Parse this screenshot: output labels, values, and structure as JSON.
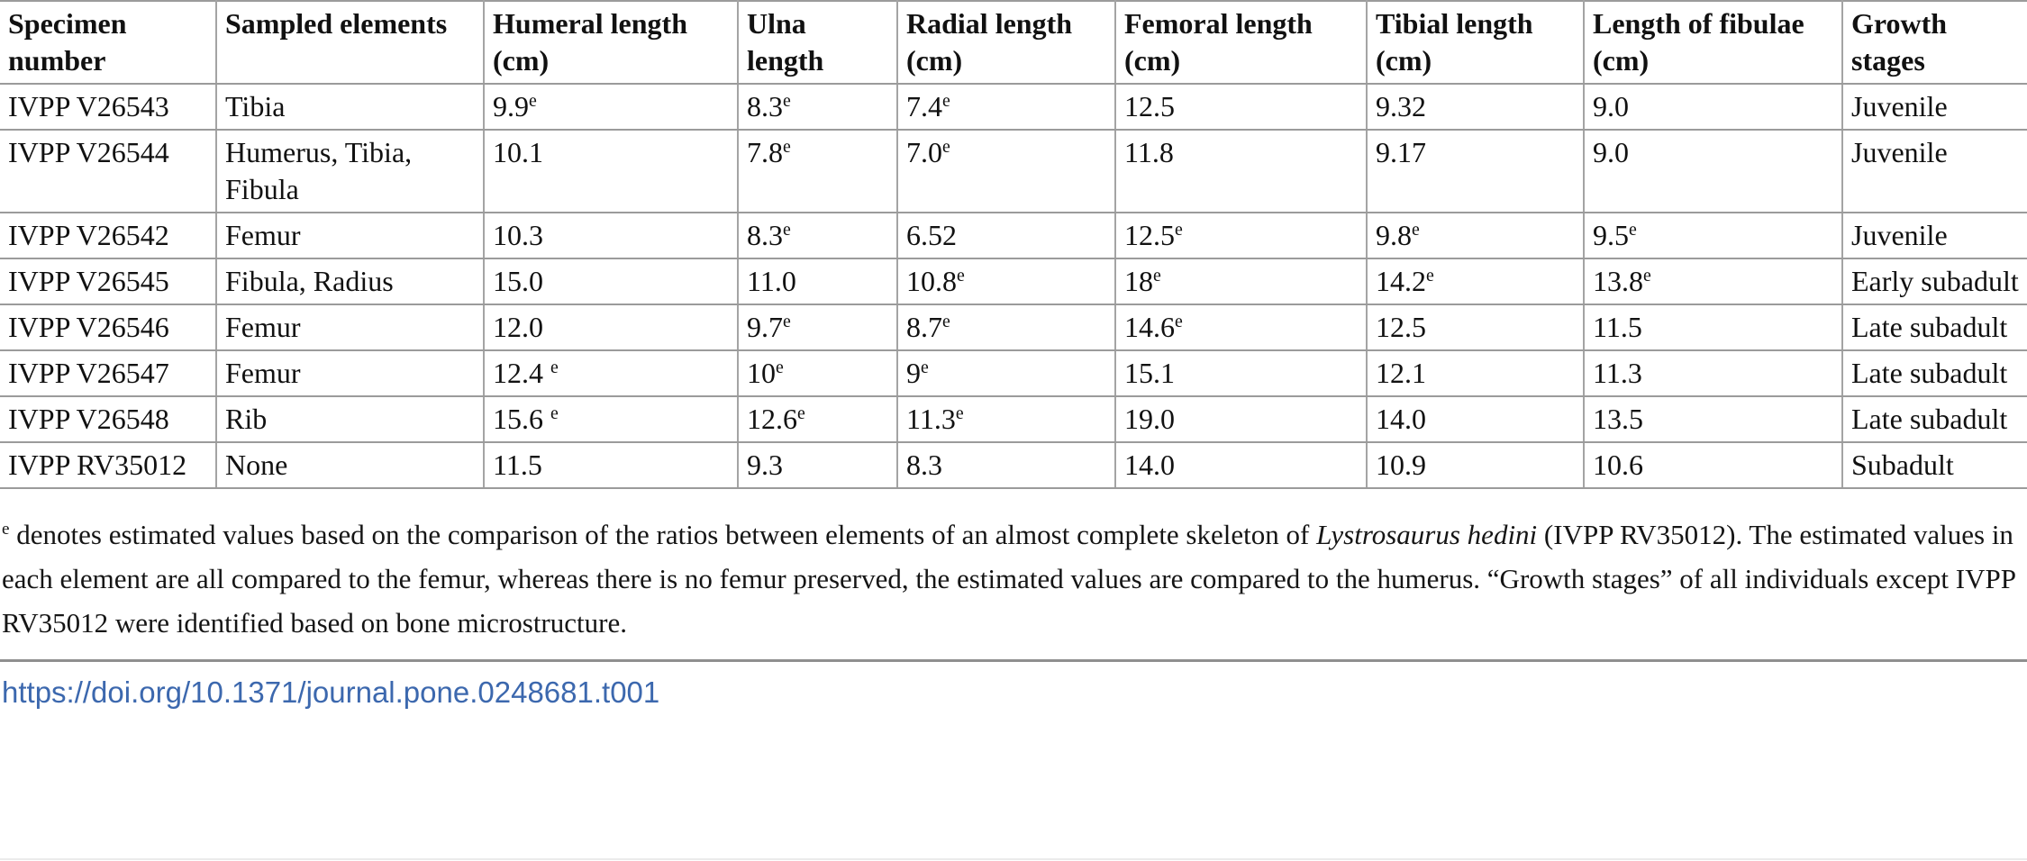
{
  "table": {
    "columns": [
      "Specimen number",
      "Sampled elements",
      "Humeral length (cm)",
      "Ulna length",
      "Radial length (cm)",
      "Femoral length (cm)",
      "Tibial length (cm)",
      "Length of fibulae (cm)",
      "Growth stages"
    ],
    "rows": [
      [
        "IVPP V26543",
        "Tibia",
        "9.9^e",
        "8.3^e",
        "7.4^e",
        "12.5",
        "9.32",
        "9.0",
        "Juvenile"
      ],
      [
        "IVPP V26544",
        "Humerus, Tibia, Fibula",
        "10.1",
        "7.8^e",
        "7.0^e",
        "11.8",
        "9.17",
        "9.0",
        "Juvenile"
      ],
      [
        "IVPP V26542",
        "Femur",
        "10.3",
        "8.3^e",
        "6.52",
        "12.5^e",
        "9.8^e",
        "9.5^e",
        "Juvenile"
      ],
      [
        "IVPP V26545",
        "Fibula, Radius",
        "15.0",
        "11.0",
        "10.8^e",
        "18^e",
        "14.2^e",
        "13.8^e",
        "Early subadult"
      ],
      [
        "IVPP V26546",
        "Femur",
        "12.0",
        "9.7^e",
        "8.7^e",
        "14.6^e",
        "12.5",
        "11.5",
        "Late subadult"
      ],
      [
        "IVPP V26547",
        "Femur",
        "12.4 ^e",
        "10^e",
        "9^e",
        "15.1",
        "12.1",
        "11.3",
        "Late subadult"
      ],
      [
        "IVPP V26548",
        "Rib",
        "15.6 ^e",
        "12.6^e",
        "11.3^e",
        "19.0",
        "14.0",
        "13.5",
        "Late subadult"
      ],
      [
        "IVPP RV35012",
        "None",
        "11.5",
        "9.3",
        "8.3",
        "14.0",
        "10.9",
        "10.6",
        "Subadult"
      ]
    ]
  },
  "footnote": {
    "sup_marker": "e",
    "text_before_species": " denotes estimated values based on the comparison of the ratios between elements of an almost complete skeleton of ",
    "species_italic": "Lystrosaurus hedini",
    "text_after_species": " (IVPP RV35012). The estimated values in each element are all compared to the femur, whereas there is no femur preserved, the estimated values are compared to the humerus. “Growth stages” of all individuals except IVPP RV35012 were identified based on bone microstructure."
  },
  "doi_link": {
    "label": "https://doi.org/10.1371/journal.pone.0248681.t001"
  },
  "colors": {
    "link-blue": "#3c68ae",
    "border-gray": "#9b9b9b",
    "divider-gray": "#8f8f8f"
  }
}
